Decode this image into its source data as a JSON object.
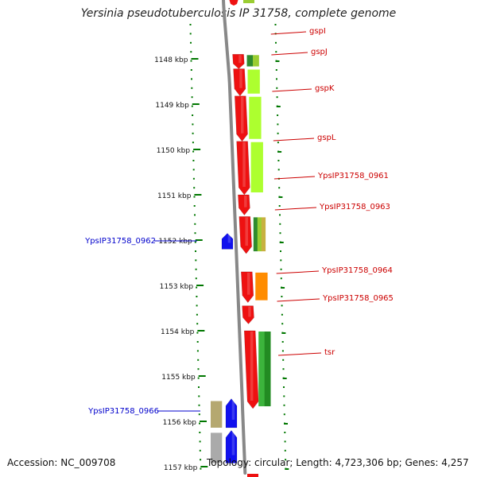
{
  "title": "Yersinia pseudotuberculosis IP 31758, complete genome",
  "accession_label": "Accession: NC_009708",
  "topology_label": "Topology: circular; Length: 4,723,306 bp; Genes: 4,257",
  "colors": {
    "forward_gene": "#ee1111",
    "reverse_gene": "#1111ee",
    "label_forward": "#cc0000",
    "label_reverse": "#0000cc",
    "tick": "#007700",
    "backbone": "#888888"
  },
  "kbp_ticks": [
    {
      "kbp": 1148,
      "label": "1148 kbp"
    },
    {
      "kbp": 1149,
      "label": "1149 kbp"
    },
    {
      "kbp": 1150,
      "label": "1150 kbp"
    },
    {
      "kbp": 1151,
      "label": "1151 kbp"
    },
    {
      "kbp": 1152,
      "label": "1152 kbp"
    },
    {
      "kbp": 1153,
      "label": "1153 kbp"
    },
    {
      "kbp": 1154,
      "label": "1154 kbp"
    },
    {
      "kbp": 1155,
      "label": "1155 kbp"
    },
    {
      "kbp": 1156,
      "label": "1156 kbp"
    },
    {
      "kbp": 1157,
      "label": "1157 kbp"
    }
  ],
  "genes": [
    {
      "name": "gspI",
      "strand": "+",
      "start_kbp": 1147.9,
      "end_kbp": 1148.22,
      "conservation_colors": [
        "#2e8b2e",
        "#9acd32"
      ]
    },
    {
      "name": "gspJ",
      "strand": "+",
      "start_kbp": 1148.22,
      "end_kbp": 1148.82,
      "conservation_colors": [
        "#adff2f"
      ]
    },
    {
      "name": "gspK",
      "strand": "+",
      "start_kbp": 1148.82,
      "end_kbp": 1149.82,
      "conservation_colors": [
        "#adff2f"
      ]
    },
    {
      "name": "gspL",
      "strand": "+",
      "start_kbp": 1149.82,
      "end_kbp": 1151.0,
      "conservation_colors": [
        "#adff2f"
      ]
    },
    {
      "name": "YpsIP31758_0961",
      "strand": "+",
      "start_kbp": 1151.0,
      "end_kbp": 1151.45,
      "conservation_colors": []
    },
    {
      "name": "YpsIP31758_0963",
      "strand": "+",
      "start_kbp": 1151.48,
      "end_kbp": 1152.3,
      "conservation_colors": [
        "#2e8b2e",
        "#9acd32",
        "#c8b040"
      ]
    },
    {
      "name": "YpsIP31758_0962",
      "strand": "-",
      "start_kbp": 1151.85,
      "end_kbp": 1152.2,
      "conservation_colors": []
    },
    {
      "name": "YpsIP31758_0964",
      "strand": "+",
      "start_kbp": 1152.7,
      "end_kbp": 1153.38,
      "conservation_colors": [
        "#ff8c00"
      ]
    },
    {
      "name": "YpsIP31758_0965",
      "strand": "+",
      "start_kbp": 1153.45,
      "end_kbp": 1153.85,
      "conservation_colors": []
    },
    {
      "name": "tsr",
      "strand": "+",
      "start_kbp": 1154.0,
      "end_kbp": 1155.72,
      "conservation_colors": [
        "#3cb43c",
        "#228b22"
      ]
    },
    {
      "name": "YpsIP31758_0966",
      "strand": "-",
      "start_kbp": 1155.5,
      "end_kbp": 1156.14,
      "conservation_colors": [
        "#b5a870"
      ]
    },
    {
      "name": "",
      "strand": "-",
      "start_kbp": 1156.2,
      "end_kbp": 1156.92,
      "conservation_colors": [
        "#aaaaaa"
      ]
    }
  ]
}
